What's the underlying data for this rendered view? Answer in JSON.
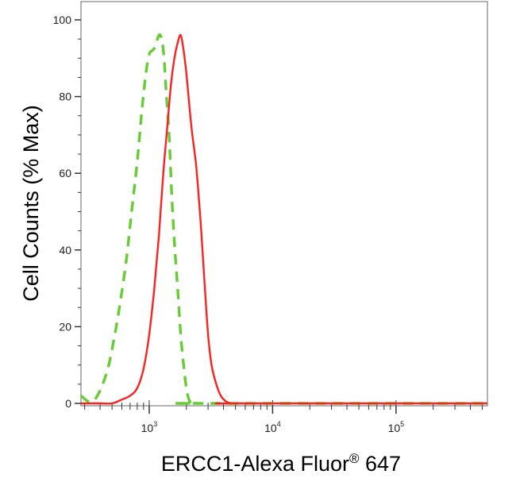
{
  "chart_data": {
    "type": "line",
    "title": "",
    "xlabel": "ERCC1-Alexa Fluor",
    "xlabel_superscript": "®",
    "xlabel_suffix": " 647",
    "ylabel": "Cell Counts (% Max)",
    "xscale": "log",
    "xlim": [
      280,
      550000
    ],
    "ylim": [
      0,
      100
    ],
    "grid": false,
    "legend": "none",
    "y_ticks": [
      0,
      20,
      40,
      60,
      80,
      100
    ],
    "y_tick_labels": [
      "0",
      "20",
      "40",
      "60",
      "80",
      "100"
    ],
    "x_major_ticks": [
      {
        "base": "10",
        "exp": "3",
        "value": 1000
      },
      {
        "base": "10",
        "exp": "4",
        "value": 10000
      },
      {
        "base": "10",
        "exp": "5",
        "value": 100000
      }
    ],
    "series": [
      {
        "color": "#66cc33",
        "style": "dashed",
        "x": [
          280,
          320,
          350,
          380,
          420,
          470,
          520,
          580,
          650,
          720,
          800,
          870,
          940,
          1000,
          1060,
          1120,
          1200,
          1260,
          1320,
          1380,
          1450,
          1520,
          1600,
          1700,
          1800,
          1900,
          2000,
          2100,
          2200,
          2300,
          2400,
          550000
        ],
        "y": [
          2,
          0.5,
          0.5,
          2,
          5,
          10,
          17,
          26,
          37,
          50,
          63,
          76,
          86,
          91,
          92,
          93,
          96,
          95,
          90,
          80,
          70,
          55,
          42,
          30,
          18,
          10,
          4,
          1,
          0,
          0,
          0,
          0
        ]
      },
      {
        "color": "#ff2020",
        "style": "solid",
        "x": [
          280,
          400,
          500,
          600,
          700,
          800,
          900,
          1000,
          1100,
          1200,
          1300,
          1400,
          1500,
          1600,
          1700,
          1800,
          1900,
          2000,
          2200,
          2400,
          2600,
          2800,
          3000,
          3200,
          3500,
          3800,
          4200,
          4600,
          5000,
          550000
        ],
        "y": [
          0,
          0,
          0,
          1,
          2,
          4,
          9,
          18,
          30,
          44,
          60,
          72,
          83,
          90,
          94,
          96,
          92,
          86,
          72,
          62,
          48,
          32,
          18,
          10,
          5,
          2,
          0.5,
          0,
          0,
          0
        ]
      }
    ]
  }
}
